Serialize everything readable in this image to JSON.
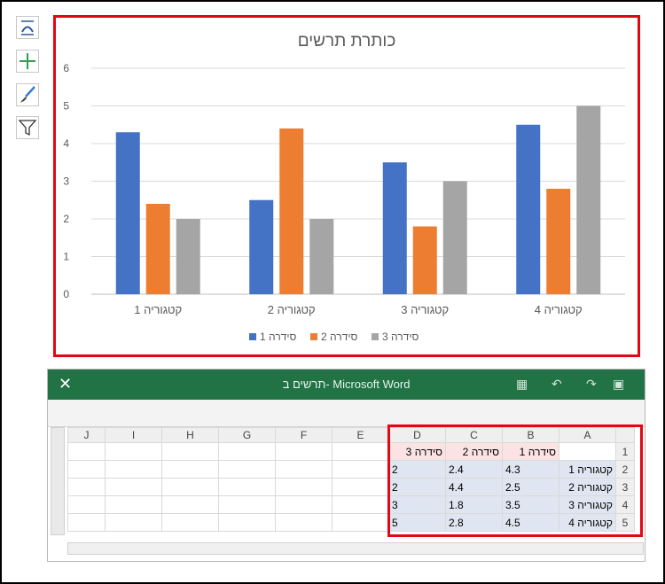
{
  "chart_data": {
    "type": "bar",
    "title": "כותרת תרשים",
    "categories": [
      "קטגוריה 1",
      "קטגוריה 2",
      "קטגוריה 3",
      "קטגוריה 4"
    ],
    "series": [
      {
        "name": "סידרה 1",
        "values": [
          4.3,
          2.5,
          3.5,
          4.5
        ],
        "color": "#4472c4"
      },
      {
        "name": "סידרה 2",
        "values": [
          2.4,
          4.4,
          1.8,
          2.8
        ],
        "color": "#ed7d31"
      },
      {
        "name": "סידרה 3",
        "values": [
          2,
          2,
          3,
          5
        ],
        "color": "#a5a5a5"
      }
    ],
    "ylim": [
      0,
      6
    ],
    "yticks": [
      0,
      1,
      2,
      3,
      4,
      5,
      6
    ],
    "grid": true,
    "legend_position": "bottom"
  },
  "side_tools": [
    "chart-elements-icon",
    "chart-styles-icon",
    "brush-icon",
    "filter-icon"
  ],
  "word_window": {
    "title": "תרשים ב- Microsoft Word",
    "close_glyph": "✕",
    "col_letters": [
      "J",
      "I",
      "H",
      "G",
      "F",
      "E",
      "D",
      "C",
      "B",
      "A"
    ],
    "rows": [
      {
        "num": "1",
        "cells": [
          "",
          "סידרה 1",
          "סידרה 2",
          "סידרה 3"
        ]
      },
      {
        "num": "2",
        "cells": [
          "קטגוריה 1",
          "4.3",
          "2.4",
          "2"
        ]
      },
      {
        "num": "3",
        "cells": [
          "קטגוריה 2",
          "2.5",
          "4.4",
          "2"
        ]
      },
      {
        "num": "4",
        "cells": [
          "קטגוריה 3",
          "3.5",
          "1.8",
          "3"
        ]
      },
      {
        "num": "5",
        "cells": [
          "קטגוריה 4",
          "4.5",
          "2.8",
          "5"
        ]
      }
    ]
  },
  "colors": {
    "highlight_border": "#e30613",
    "excel_green": "#217346"
  }
}
